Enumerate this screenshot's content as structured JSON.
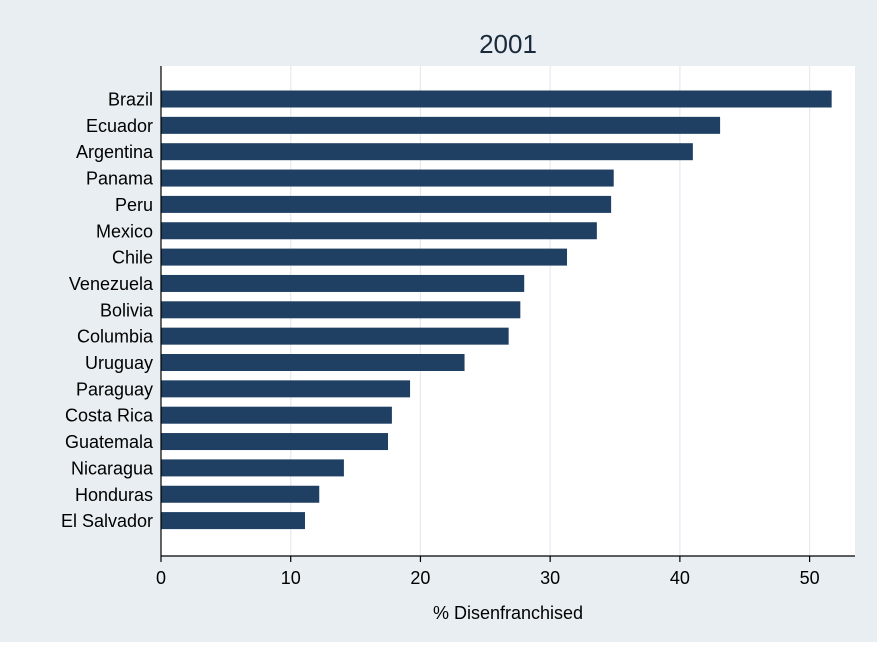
{
  "chart_data": {
    "type": "bar",
    "orientation": "horizontal",
    "title": "2001",
    "xlabel": "% Disenfranchised",
    "ylabel": "",
    "xlim": [
      0,
      53.5
    ],
    "xticks": [
      0,
      10,
      20,
      30,
      40,
      50
    ],
    "grid": true,
    "legend": "none",
    "categories": [
      "Brazil",
      "Ecuador",
      "Argentina",
      "Panama",
      "Peru",
      "Mexico",
      "Chile",
      "Venezuela",
      "Bolivia",
      "Columbia",
      "Uruguay",
      "Paraguay",
      "Costa Rica",
      "Guatemala",
      "Nicaragua",
      "Honduras",
      "El Salvador"
    ],
    "values": [
      51.7,
      43.1,
      41.0,
      34.9,
      34.7,
      33.6,
      31.3,
      28.0,
      27.7,
      26.8,
      23.4,
      19.2,
      17.8,
      17.5,
      14.1,
      12.2,
      11.1
    ],
    "colors": {
      "bar": "#1f3f63",
      "background": "#e8eef2",
      "plot_background": "#ffffff",
      "grid": "#e4ebef"
    }
  }
}
